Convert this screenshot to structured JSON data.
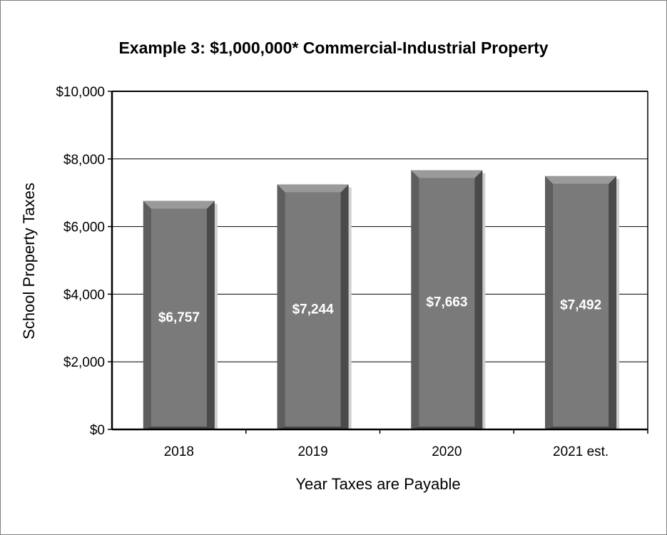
{
  "chart_data": {
    "type": "bar",
    "title": "Example 3:  $1,000,000* Commercial-Industrial Property",
    "xlabel": "Year Taxes are Payable",
    "ylabel": "School Property Taxes",
    "categories": [
      "2018",
      "2019",
      "2020",
      "2021 est."
    ],
    "values": [
      6757,
      7244,
      7663,
      7492
    ],
    "value_labels": [
      "$6,757",
      "$7,244",
      "$7,663",
      "$7,492"
    ],
    "ylim": [
      0,
      10000
    ],
    "yticks": [
      0,
      2000,
      4000,
      6000,
      8000,
      10000
    ],
    "ytick_labels": [
      "$0",
      "$2,000",
      "$4,000",
      "$6,000",
      "$8,000",
      "$10,000"
    ],
    "grid": true,
    "legend": "none",
    "colors": {
      "bar_face": "#7a7a7a",
      "bar_side_dark": "#4a4a4a",
      "bar_side_light": "#5e5e5e",
      "bar_top": "#9a9a9a",
      "label_text": "#ffffff",
      "axis": "#000000",
      "grid": "#000000"
    }
  }
}
